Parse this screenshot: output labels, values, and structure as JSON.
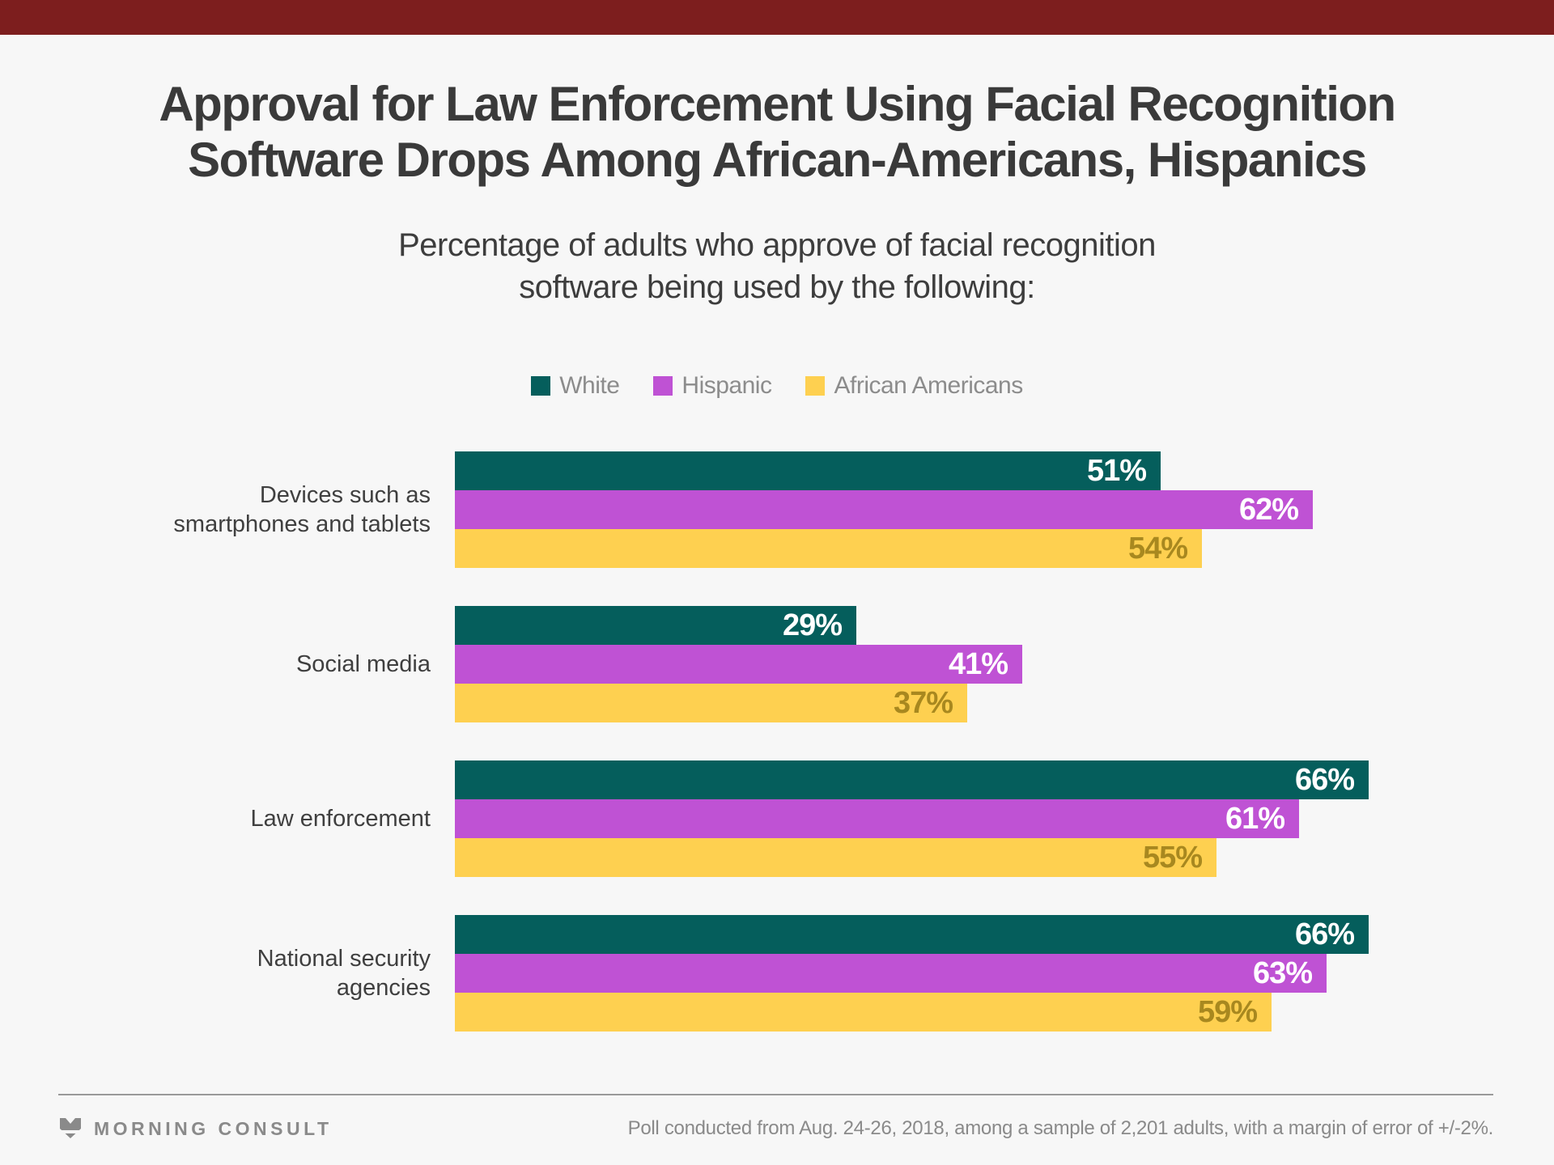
{
  "brand": {
    "top_bar_color": "#7d1e1e",
    "name": "MORNING CONSULT"
  },
  "title": {
    "lines": [
      "Approval for Law Enforcement Using Facial Recognition",
      "Software Drops Among African-Americans, Hispanics"
    ]
  },
  "subtitle": {
    "lines": [
      "Percentage of adults who approve of facial recognition",
      "software being used by the following:"
    ]
  },
  "chart_data": {
    "type": "bar",
    "orientation": "horizontal",
    "grid": false,
    "axes_hidden": true,
    "legend_position": "top",
    "value_suffix": "%",
    "xlim": [
      0,
      100
    ],
    "categories": [
      "Devices such as smartphones and tablets",
      "Social media",
      "Law enforcement",
      "National security agencies"
    ],
    "series": [
      {
        "name": "White",
        "color": "#055e5c",
        "label_color": "#ffffff",
        "values": [
          51,
          29,
          66,
          66
        ]
      },
      {
        "name": "Hispanic",
        "color": "#bf52d4",
        "label_color": "#ffffff",
        "values": [
          62,
          41,
          61,
          63
        ]
      },
      {
        "name": "African Americans",
        "color": "#fed050",
        "label_color": "#a8881f",
        "values": [
          54,
          37,
          55,
          59
        ]
      }
    ]
  },
  "footer": {
    "note": "Poll conducted from Aug. 24-26, 2018, among a sample of 2,201 adults, with a margin of error of +/-2%."
  },
  "colors": {
    "background": "#f7f7f7",
    "title_text": "#3a3a3a",
    "subtitle_text": "#3d3d3d",
    "category_label": "#3f3f3f",
    "legend_text": "#8c8c8c",
    "footer_text": "#8a8a8a",
    "divider": "#9a9a9a",
    "top_bar": "#7d1e1e"
  }
}
